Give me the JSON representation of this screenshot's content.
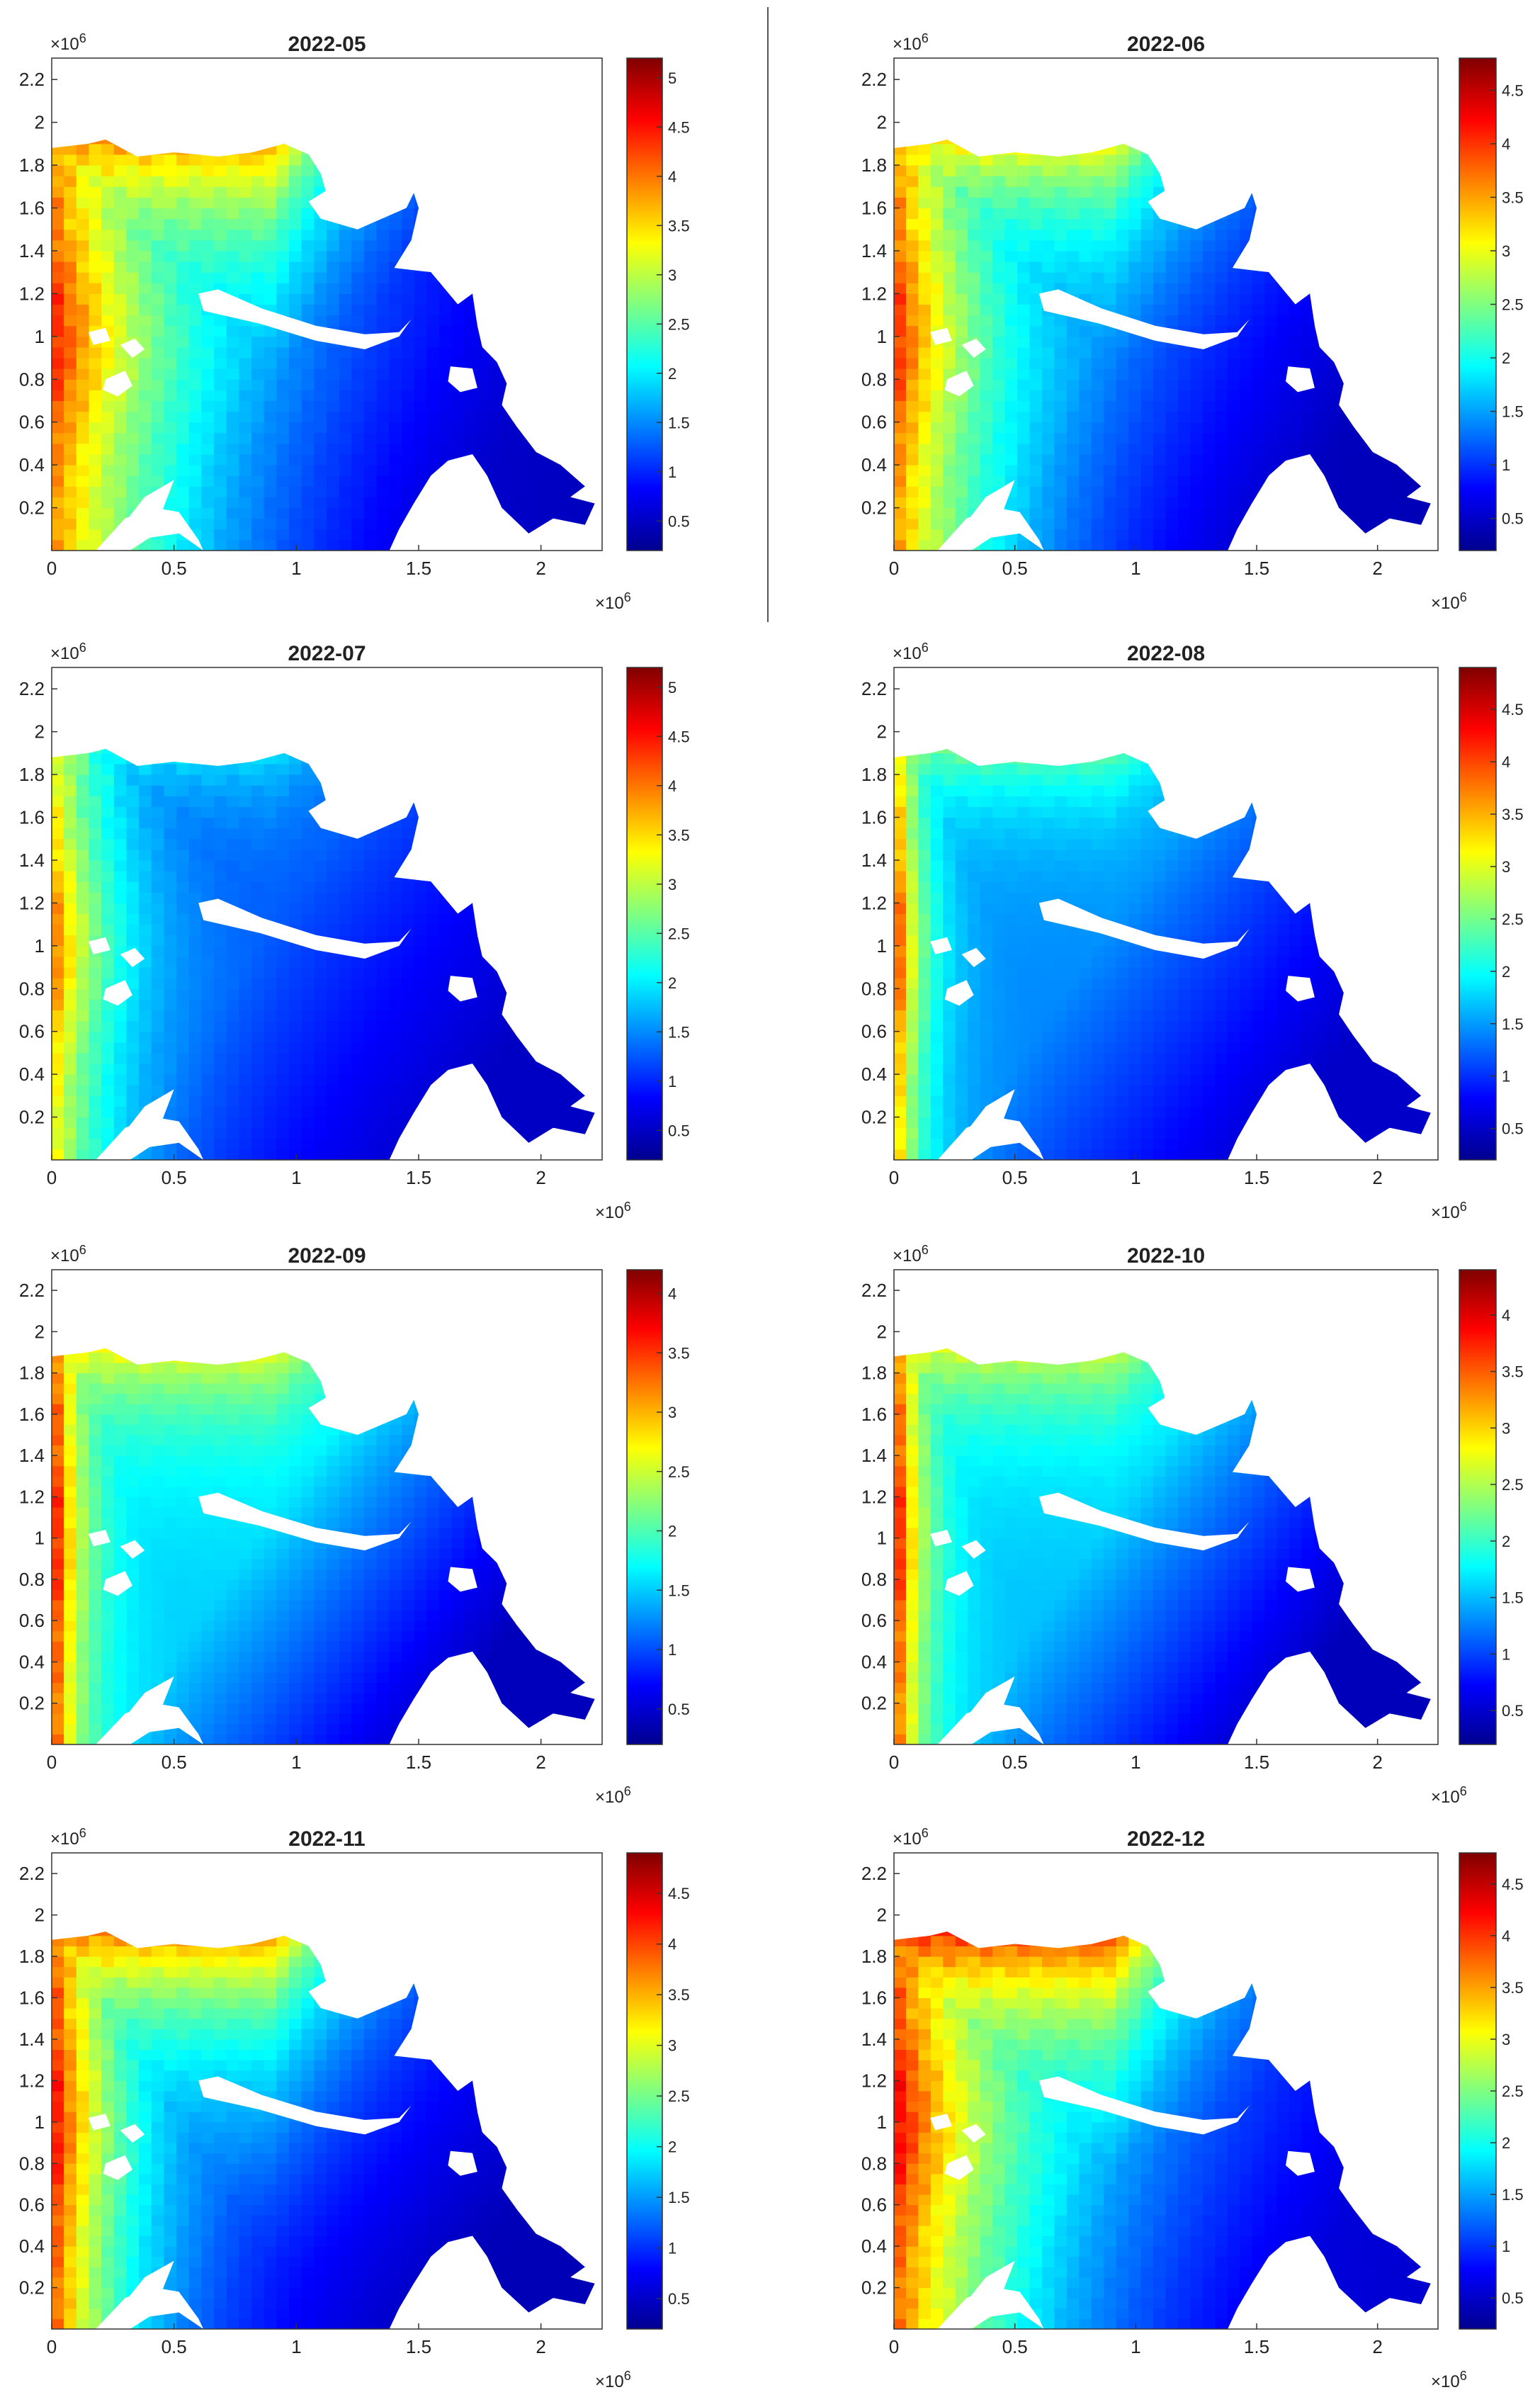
{
  "figure": {
    "colormap": "jet",
    "colormap_stops": [
      "#00008f",
      "#0000ff",
      "#0080ff",
      "#00ffff",
      "#80ff80",
      "#ffff00",
      "#ff8000",
      "#ff0000",
      "#800000"
    ],
    "axis_multiplier": "×10",
    "axis_multiplier_exp": "6"
  },
  "chart_data": [
    {
      "type": "heatmap",
      "title": "2022-05",
      "xlim": [
        0,
        2.25
      ],
      "ylim": [
        0,
        2.3
      ],
      "xticks": [
        "0",
        "0.5",
        "1",
        "1.5",
        "2"
      ],
      "yticks": [
        "0.2",
        "0.4",
        "0.6",
        "0.8",
        "1",
        "1.2",
        "1.4",
        "1.6",
        "1.8",
        "2",
        "2.2"
      ],
      "colorbar": {
        "min": 0.2,
        "max": 5.2,
        "ticks": [
          "0.5",
          "1",
          "1.5",
          "2",
          "2.5",
          "3",
          "3.5",
          "4",
          "4.5",
          "5"
        ]
      },
      "field": {
        "west_edge": 3.9,
        "west_core": 4.7,
        "north": 4.0,
        "interior": 1.0,
        "east": 0.4,
        "west_width": 0.55,
        "north_span": 0.65,
        "pattern": "warm west and north"
      }
    },
    {
      "type": "heatmap",
      "title": "2022-06",
      "xlim": [
        0,
        2.25
      ],
      "ylim": [
        0,
        2.3
      ],
      "xticks": [
        "0",
        "0.5",
        "1",
        "1.5",
        "2"
      ],
      "yticks": [
        "0.2",
        "0.4",
        "0.6",
        "0.8",
        "1",
        "1.2",
        "1.4",
        "1.6",
        "1.8",
        "2",
        "2.2"
      ],
      "colorbar": {
        "min": 0.2,
        "max": 4.8,
        "ticks": [
          "0.5",
          "1",
          "1.5",
          "2",
          "2.5",
          "3",
          "3.5",
          "4",
          "4.5"
        ]
      },
      "field": {
        "west_edge": 3.6,
        "west_core": 4.3,
        "north": 3.3,
        "interior": 1.1,
        "east": 0.4,
        "west_width": 0.4,
        "north_span": 0.5,
        "pattern": "warm west and north"
      }
    },
    {
      "type": "heatmap",
      "title": "2022-07",
      "xlim": [
        0,
        2.25
      ],
      "ylim": [
        0,
        2.3
      ],
      "xticks": [
        "0",
        "0.5",
        "1",
        "1.5",
        "2"
      ],
      "yticks": [
        "0.2",
        "0.4",
        "0.6",
        "0.8",
        "1",
        "1.2",
        "1.4",
        "1.6",
        "1.8",
        "2",
        "2.2"
      ],
      "colorbar": {
        "min": 0.2,
        "max": 5.2,
        "ticks": [
          "0.5",
          "1",
          "1.5",
          "2",
          "2.5",
          "3",
          "3.5",
          "4",
          "4.5",
          "5"
        ]
      },
      "field": {
        "west_edge": 3.4,
        "west_core": 4.4,
        "north": 2.1,
        "interior": 1.2,
        "east": 0.5,
        "west_width": 0.25,
        "north_span": 0.3,
        "pattern": "warm west strip"
      }
    },
    {
      "type": "heatmap",
      "title": "2022-08",
      "xlim": [
        0,
        2.25
      ],
      "ylim": [
        0,
        2.3
      ],
      "xticks": [
        "0",
        "0.5",
        "1",
        "1.5",
        "2"
      ],
      "yticks": [
        "0.2",
        "0.4",
        "0.6",
        "0.8",
        "1",
        "1.2",
        "1.4",
        "1.6",
        "1.8",
        "2",
        "2.2"
      ],
      "colorbar": {
        "min": 0.2,
        "max": 4.9,
        "ticks": [
          "0.5",
          "1",
          "1.5",
          "2",
          "2.5",
          "3",
          "3.5",
          "4",
          "4.5"
        ]
      },
      "field": {
        "west_edge": 3.6,
        "west_core": 4.6,
        "north": 2.6,
        "interior": 1.4,
        "east": 0.5,
        "west_width": 0.12,
        "north_span": 0.3,
        "pattern": "warm west strip"
      }
    },
    {
      "type": "heatmap",
      "title": "2022-09",
      "xlim": [
        0,
        2.25
      ],
      "ylim": [
        0,
        2.3
      ],
      "xticks": [
        "0",
        "0.5",
        "1",
        "1.5",
        "2"
      ],
      "yticks": [
        "0.2",
        "0.4",
        "0.6",
        "0.8",
        "1",
        "1.2",
        "1.4",
        "1.6",
        "1.8",
        "2",
        "2.2"
      ],
      "colorbar": {
        "min": 0.2,
        "max": 4.2,
        "ticks": [
          "0.5",
          "1",
          "1.5",
          "2",
          "2.5",
          "3",
          "3.5",
          "4"
        ]
      },
      "field": {
        "west_edge": 3.6,
        "west_core": 4.1,
        "north": 2.8,
        "interior": 1.5,
        "east": 0.4,
        "west_width": 0.12,
        "north_span": 0.35,
        "pattern": "warm west strip"
      }
    },
    {
      "type": "heatmap",
      "title": "2022-10",
      "xlim": [
        0,
        2.25
      ],
      "ylim": [
        0,
        2.3
      ],
      "xticks": [
        "0",
        "0.5",
        "1",
        "1.5",
        "2"
      ],
      "yticks": [
        "0.2",
        "0.4",
        "0.6",
        "0.8",
        "1",
        "1.2",
        "1.4",
        "1.6",
        "1.8",
        "2",
        "2.2"
      ],
      "colorbar": {
        "min": 0.2,
        "max": 4.4,
        "ticks": [
          "0.5",
          "1",
          "1.5",
          "2",
          "2.5",
          "3",
          "3.5",
          "4"
        ]
      },
      "field": {
        "west_edge": 3.7,
        "west_core": 4.3,
        "north": 2.8,
        "interior": 1.5,
        "east": 0.4,
        "west_width": 0.12,
        "north_span": 0.35,
        "pattern": "warm west strip"
      }
    },
    {
      "type": "heatmap",
      "title": "2022-11",
      "xlim": [
        0,
        2.25
      ],
      "ylim": [
        0,
        2.3
      ],
      "xticks": [
        "0",
        "0.5",
        "1",
        "1.5",
        "2"
      ],
      "yticks": [
        "0.2",
        "0.4",
        "0.6",
        "0.8",
        "1",
        "1.2",
        "1.4",
        "1.6",
        "1.8",
        "2",
        "2.2"
      ],
      "colorbar": {
        "min": 0.2,
        "max": 4.9,
        "ticks": [
          "0.5",
          "1",
          "1.5",
          "2",
          "2.5",
          "3",
          "3.5",
          "4",
          "4.5"
        ]
      },
      "field": {
        "west_edge": 4.0,
        "west_core": 4.6,
        "north": 3.9,
        "interior": 1.0,
        "east": 0.4,
        "west_width": 0.3,
        "north_span": 0.55,
        "pattern": "warm west and north"
      }
    },
    {
      "type": "heatmap",
      "title": "2022-12",
      "xlim": [
        0,
        2.25
      ],
      "ylim": [
        0,
        2.3
      ],
      "xticks": [
        "0",
        "0.5",
        "1",
        "1.5",
        "2"
      ],
      "yticks": [
        "0.2",
        "0.4",
        "0.6",
        "0.8",
        "1",
        "1.2",
        "1.4",
        "1.6",
        "1.8",
        "2",
        "2.2"
      ],
      "colorbar": {
        "min": 0.2,
        "max": 4.8,
        "ticks": [
          "0.5",
          "1",
          "1.5",
          "2",
          "2.5",
          "3",
          "3.5",
          "4",
          "4.5"
        ]
      },
      "field": {
        "west_edge": 3.8,
        "west_core": 4.5,
        "north": 4.2,
        "interior": 1.1,
        "east": 0.5,
        "west_width": 0.5,
        "north_span": 0.6,
        "pattern": "warm west and north"
      }
    }
  ]
}
